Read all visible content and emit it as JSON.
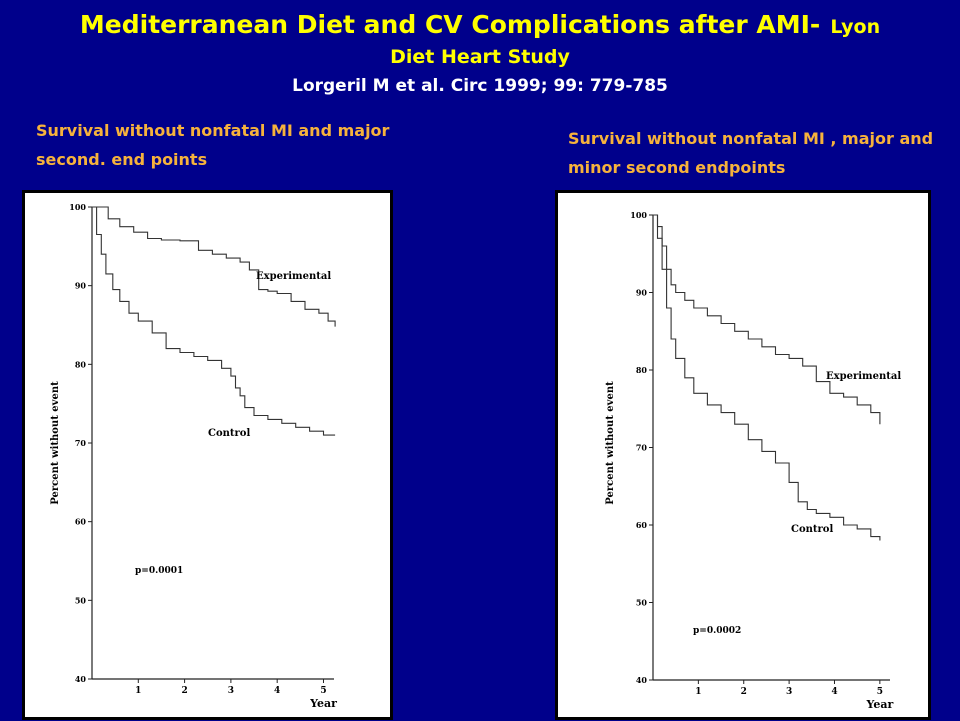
{
  "slide": {
    "title_main": "Mediterranean Diet and CV Complications after AMI-",
    "title_tail": "Lyon",
    "title_line2": "Diet Heart Study",
    "citation": "Lorgeril M et al. Circ 1999; 99: 779-785",
    "subtitle_left": "Survival without nonfatal MI and major second. end points",
    "subtitle_right": "Survival without nonfatal MI , major and minor second endpoints"
  },
  "chart_data": [
    {
      "type": "line",
      "ylabel": "Percent without event",
      "xlabel": "Year",
      "xlim": [
        0,
        5.4
      ],
      "ylim": [
        40,
        100
      ],
      "xticks": [
        1,
        2,
        3,
        4,
        5
      ],
      "yticks": [
        40,
        50,
        60,
        70,
        80,
        90,
        100
      ],
      "annotation": "p=0.0001",
      "series": [
        {
          "name": "Experimental",
          "x": [
            0,
            0.35,
            0.6,
            0.9,
            1.2,
            1.5,
            1.9,
            2.3,
            2.6,
            2.9,
            3.2,
            3.4,
            3.6,
            3.8,
            4.0,
            4.3,
            4.6,
            4.9,
            5.1,
            5.25
          ],
          "y": [
            100,
            98.5,
            97.5,
            96.8,
            96.0,
            95.8,
            95.7,
            94.5,
            94.0,
            93.5,
            93.0,
            92.0,
            89.5,
            89.3,
            89.0,
            88.0,
            87.0,
            86.5,
            85.5,
            84.8
          ]
        },
        {
          "name": "Control",
          "x": [
            0,
            0.1,
            0.2,
            0.3,
            0.45,
            0.6,
            0.8,
            1.0,
            1.3,
            1.6,
            1.9,
            2.2,
            2.5,
            2.8,
            3.0,
            3.1,
            3.2,
            3.3,
            3.5,
            3.8,
            4.1,
            4.4,
            4.7,
            5.0,
            5.25
          ],
          "y": [
            100,
            96.5,
            94.0,
            91.5,
            89.5,
            88.0,
            86.5,
            85.5,
            84.0,
            82.0,
            81.5,
            81.0,
            80.5,
            79.5,
            78.5,
            77.0,
            76.0,
            74.5,
            73.5,
            73.0,
            72.5,
            72.0,
            71.5,
            71.0,
            71.0
          ]
        }
      ]
    },
    {
      "type": "line",
      "ylabel": "Percent without event",
      "xlabel": "Year",
      "xlim": [
        0,
        5.4
      ],
      "ylim": [
        40,
        100
      ],
      "xticks": [
        1,
        2,
        3,
        4,
        5
      ],
      "yticks": [
        40,
        50,
        60,
        70,
        80,
        90,
        100
      ],
      "annotation": "p=0.0002",
      "series": [
        {
          "name": "Experimental",
          "x": [
            0,
            0.1,
            0.2,
            0.3,
            0.4,
            0.5,
            0.7,
            0.9,
            1.2,
            1.5,
            1.8,
            2.1,
            2.4,
            2.7,
            3.0,
            3.3,
            3.6,
            3.9,
            4.2,
            4.5,
            4.8,
            5.0
          ],
          "y": [
            100,
            98.5,
            96.0,
            93.0,
            91.0,
            90.0,
            89.0,
            88.0,
            87.0,
            86.0,
            85.0,
            84.0,
            83.0,
            82.0,
            81.5,
            80.5,
            78.5,
            77.0,
            76.5,
            75.5,
            74.5,
            73.0
          ]
        },
        {
          "name": "Control",
          "x": [
            0,
            0.1,
            0.2,
            0.3,
            0.4,
            0.5,
            0.7,
            0.9,
            1.2,
            1.5,
            1.8,
            2.1,
            2.4,
            2.7,
            3.0,
            3.2,
            3.4,
            3.6,
            3.9,
            4.2,
            4.5,
            4.8,
            5.0
          ],
          "y": [
            100,
            97.0,
            93.0,
            88.0,
            84.0,
            81.5,
            79.0,
            77.0,
            75.5,
            74.5,
            73.0,
            71.0,
            69.5,
            68.0,
            65.5,
            63.0,
            62.0,
            61.5,
            61.0,
            60.0,
            59.5,
            58.5,
            58.0
          ]
        }
      ]
    }
  ]
}
